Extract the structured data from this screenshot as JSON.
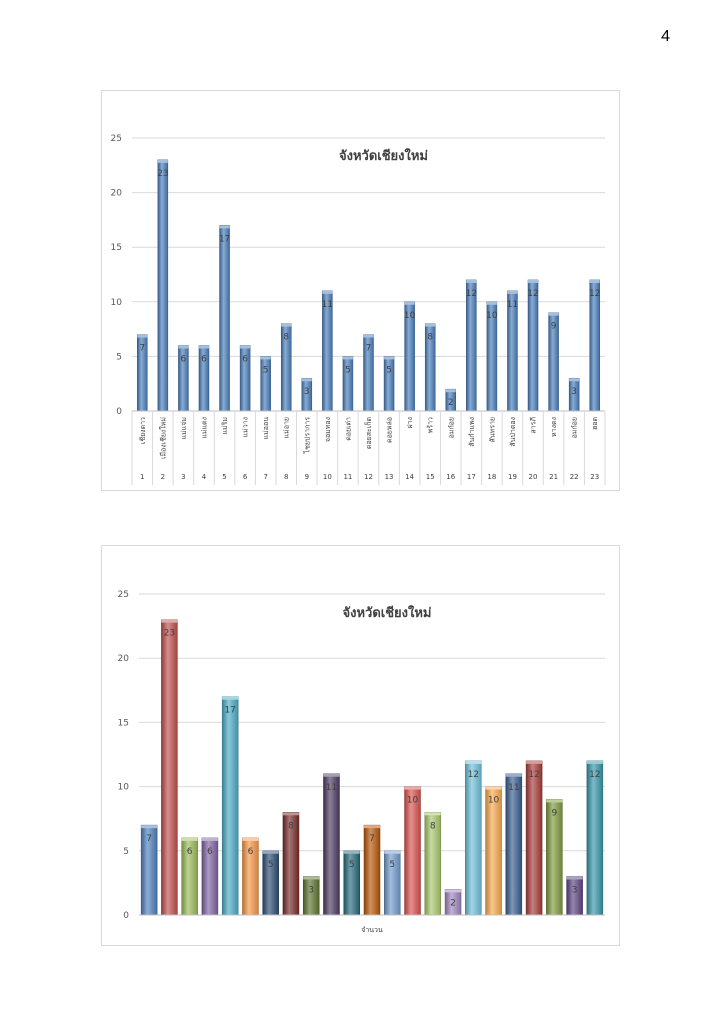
{
  "page": {
    "number": "4"
  },
  "chart_data": [
    {
      "type": "bar",
      "title": "จังหวัดเชียงใหม่",
      "xlabel": "",
      "ylabel": "",
      "ylim": [
        0,
        25
      ],
      "yticks": [
        "0",
        "5",
        "10",
        "15",
        "20",
        "25"
      ],
      "grid": true,
      "legend": "none",
      "indices": [
        "1",
        "2",
        "3",
        "4",
        "5",
        "6",
        "7",
        "8",
        "9",
        "10",
        "11",
        "12",
        "13",
        "14",
        "15",
        "16",
        "17",
        "18",
        "19",
        "20",
        "21",
        "22",
        "23"
      ],
      "categories": [
        "เชียงดาว",
        "เมืองเชียงใหม่",
        "แม่แจ่ม",
        "แม่แตง",
        "แม่ริม",
        "แม่วาง",
        "แม่ออน",
        "แม่อาย",
        "ไชยปราการ",
        "จอมทอง",
        "ดอยเต่า",
        "ดอยสะเก็ด",
        "ดอยหล่อ",
        "ฝาง",
        "พร้าว",
        "อมก๋อย",
        "สันกำแพง",
        "สันทราย",
        "สันป่าตอง",
        "สารภี",
        "หางดง",
        "อมก๋อย",
        "ฮอด"
      ],
      "values": [
        7,
        23,
        6,
        6,
        17,
        6,
        5,
        8,
        3,
        11,
        5,
        7,
        5,
        10,
        8,
        2,
        12,
        10,
        11,
        12,
        9,
        3,
        12
      ],
      "colors": [
        "#4a7ebb"
      ]
    },
    {
      "type": "bar",
      "title": "จังหวัดเชียงใหม่",
      "xlabel": "จำนวน",
      "ylabel": "",
      "ylim": [
        0,
        25
      ],
      "yticks": [
        "0",
        "5",
        "10",
        "15",
        "20",
        "25"
      ],
      "grid": true,
      "legend": "none",
      "values": [
        7,
        23,
        6,
        6,
        17,
        6,
        5,
        8,
        3,
        11,
        5,
        7,
        5,
        10,
        8,
        2,
        12,
        10,
        11,
        12,
        9,
        3,
        12
      ],
      "colors": [
        "#4f81bd",
        "#c0504d",
        "#9bbb59",
        "#8064a2",
        "#4bacc6",
        "#f79646",
        "#2c4d75",
        "#772c2a",
        "#5f7530",
        "#4d3b62",
        "#276a7c",
        "#b65708",
        "#729aca",
        "#d9534f",
        "#a9c86b",
        "#9f87c0",
        "#6fc0d9",
        "#f9a94e",
        "#3a5d8f",
        "#a83c3a",
        "#7f9a3e",
        "#5e4582",
        "#3696aa"
      ]
    }
  ]
}
